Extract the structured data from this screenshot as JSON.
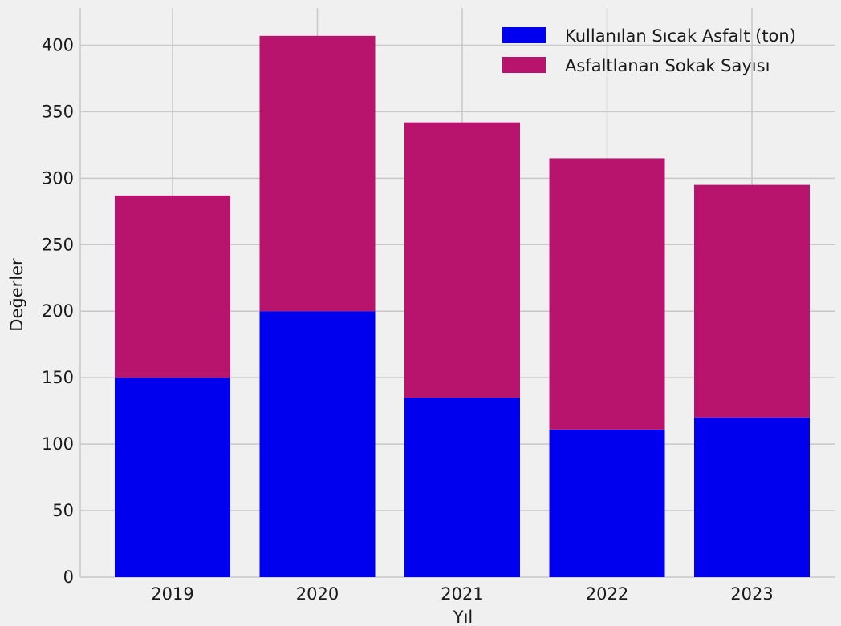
{
  "chart_data": {
    "type": "bar",
    "stacked": true,
    "categories": [
      "2019",
      "2020",
      "2021",
      "2022",
      "2023"
    ],
    "series": [
      {
        "name": "Kullanılan Sıcak Asfalt (ton)",
        "color": "#0000ee",
        "values": [
          150,
          200,
          135,
          111,
          120
        ]
      },
      {
        "name": "Asfaltlanan Sokak Sayısı",
        "color": "#b8146e",
        "values": [
          137,
          207,
          207,
          204,
          175
        ]
      }
    ],
    "xlabel": "Yıl",
    "ylabel": "Değerler",
    "ylim": [
      0,
      428
    ],
    "yticks": [
      0,
      50,
      100,
      150,
      200,
      250,
      300,
      350,
      400
    ],
    "grid": true,
    "legend_position": "top-right",
    "background": "#f0f0f0",
    "grid_color": "#c8c8c8"
  }
}
